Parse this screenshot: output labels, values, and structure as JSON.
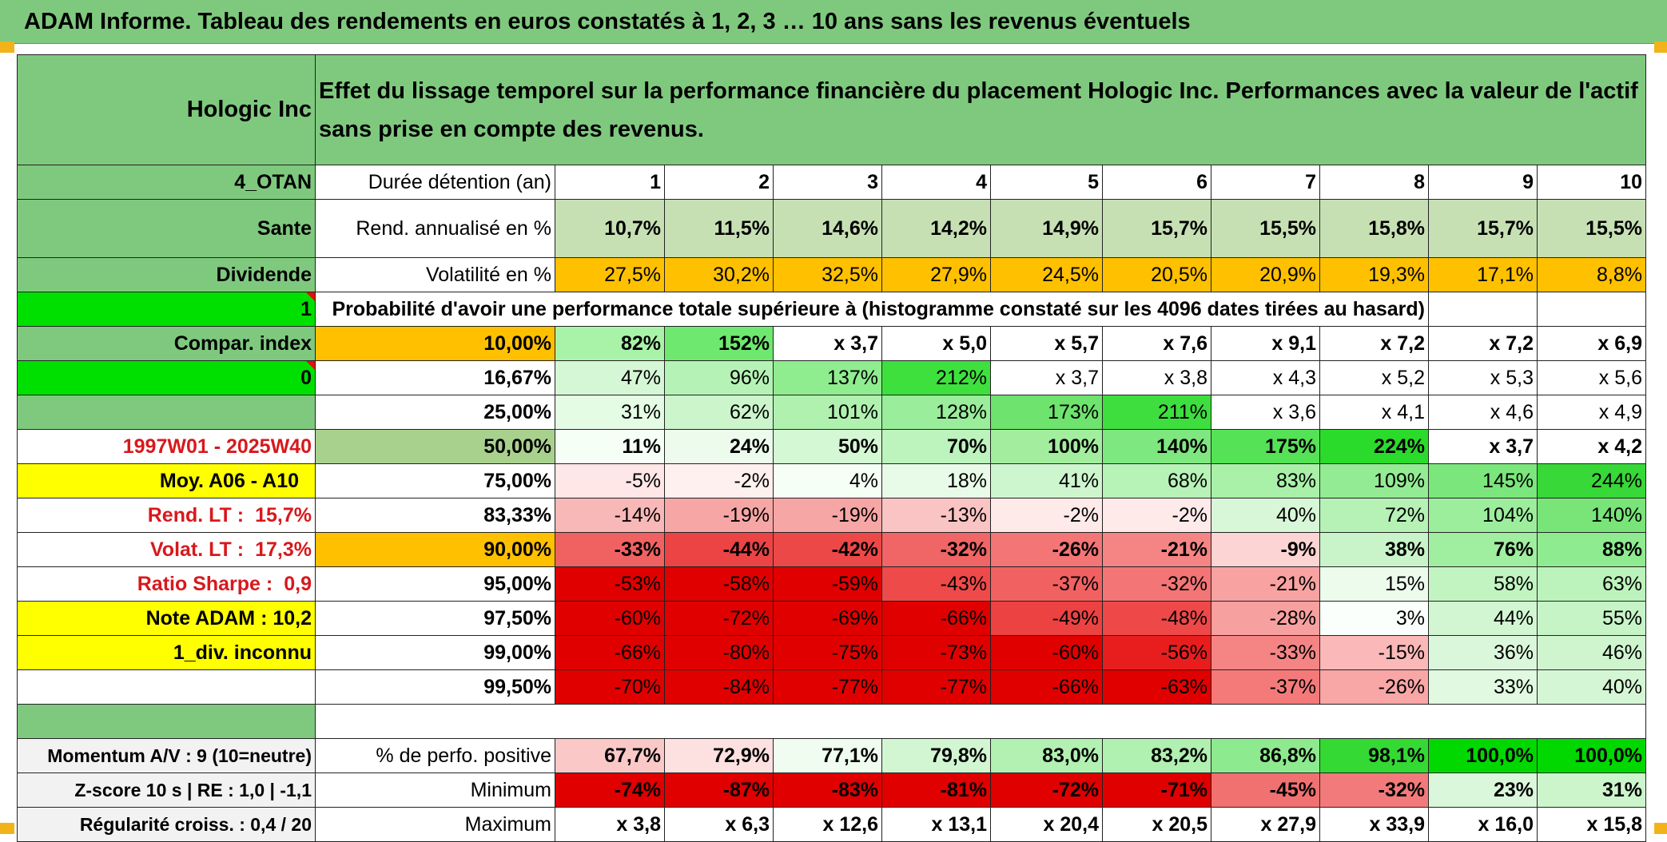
{
  "title": "ADAM Informe. Tableau des rendements en euros constatés à 1, 2, 3 … 10 ans sans les revenus éventuels",
  "asset": "Hologic Inc",
  "description": "Effet du lissage temporel sur la performance financière du placement Hologic Inc. Performances avec la valeur de l'actif sans prise en compte des revenus.",
  "left": {
    "category": "4_OTAN",
    "sector": "Sante",
    "income_type": "Dividende",
    "flag1": "1",
    "compar_index": "Compar. index",
    "flag2": "0",
    "period": "1997W01 - 2025W40",
    "moy": "Moy. A06 - A10",
    "rend_lt_label": "Rend. LT :",
    "rend_lt_value": "15,7%",
    "volat_lt_label": "Volat. LT :",
    "volat_lt_value": "17,3%",
    "sharpe_label": "Ratio Sharpe :",
    "sharpe_value": "0,9",
    "note": "Note ADAM : 10,2",
    "div": "1_div. inconnu",
    "momentum": "Momentum A/V : 9 (10=neutre)",
    "zscore": "Z-score 10 s | RE : 1,0 | -1,1",
    "regularite": "Régularité croiss. : 0,4 / 20"
  },
  "header": {
    "duration_label": "Durée détention (an)",
    "years": [
      "1",
      "2",
      "3",
      "4",
      "5",
      "6",
      "7",
      "8",
      "9",
      "10"
    ]
  },
  "rend": {
    "label": "Rend. annualisé en %",
    "values": [
      "10,7%",
      "11,5%",
      "14,6%",
      "14,2%",
      "14,9%",
      "15,7%",
      "15,5%",
      "15,8%",
      "15,7%",
      "15,5%"
    ]
  },
  "volat": {
    "label": "Volatilité en %",
    "values": [
      "27,5%",
      "30,2%",
      "32,5%",
      "27,9%",
      "24,5%",
      "20,5%",
      "20,9%",
      "19,3%",
      "17,1%",
      "8,8%"
    ]
  },
  "prob_label": "Probabilité d'avoir une performance totale supérieure à (histogramme constaté sur les 4096 dates tirées au hasard)",
  "prob_rows": [
    {
      "p": "10,00%",
      "v": [
        "82%",
        "152%",
        "x 3,7",
        "x 5,0",
        "x 5,7",
        "x 7,6",
        "x 9,1",
        "x 7,2",
        "x 7,2",
        "x 6,9"
      ]
    },
    {
      "p": "16,67%",
      "v": [
        "47%",
        "96%",
        "137%",
        "212%",
        "x 3,7",
        "x 3,8",
        "x 4,3",
        "x 5,2",
        "x 5,3",
        "x 5,6"
      ]
    },
    {
      "p": "25,00%",
      "v": [
        "31%",
        "62%",
        "101%",
        "128%",
        "173%",
        "211%",
        "x 3,6",
        "x 4,1",
        "x 4,6",
        "x 4,9"
      ]
    },
    {
      "p": "50,00%",
      "v": [
        "11%",
        "24%",
        "50%",
        "70%",
        "100%",
        "140%",
        "175%",
        "224%",
        "x 3,7",
        "x 4,2"
      ]
    },
    {
      "p": "75,00%",
      "v": [
        "-5%",
        "-2%",
        "4%",
        "18%",
        "41%",
        "68%",
        "83%",
        "109%",
        "145%",
        "244%"
      ]
    },
    {
      "p": "83,33%",
      "v": [
        "-14%",
        "-19%",
        "-19%",
        "-13%",
        "-2%",
        "-2%",
        "40%",
        "72%",
        "104%",
        "140%"
      ]
    },
    {
      "p": "90,00%",
      "v": [
        "-33%",
        "-44%",
        "-42%",
        "-32%",
        "-26%",
        "-21%",
        "-9%",
        "38%",
        "76%",
        "88%"
      ]
    },
    {
      "p": "95,00%",
      "v": [
        "-53%",
        "-58%",
        "-59%",
        "-43%",
        "-37%",
        "-32%",
        "-21%",
        "15%",
        "58%",
        "63%"
      ]
    },
    {
      "p": "97,50%",
      "v": [
        "-60%",
        "-72%",
        "-69%",
        "-66%",
        "-49%",
        "-48%",
        "-28%",
        "3%",
        "44%",
        "55%"
      ]
    },
    {
      "p": "99,00%",
      "v": [
        "-66%",
        "-80%",
        "-75%",
        "-73%",
        "-60%",
        "-56%",
        "-33%",
        "-15%",
        "36%",
        "46%"
      ]
    },
    {
      "p": "99,50%",
      "v": [
        "-70%",
        "-84%",
        "-77%",
        "-77%",
        "-66%",
        "-63%",
        "-37%",
        "-26%",
        "33%",
        "40%"
      ]
    }
  ],
  "positive": {
    "label": "% de perfo. positive",
    "values": [
      "67,7%",
      "72,9%",
      "77,1%",
      "79,8%",
      "83,0%",
      "83,2%",
      "86,8%",
      "98,1%",
      "100,0%",
      "100,0%"
    ]
  },
  "minimum": {
    "label": "Minimum",
    "values": [
      "-74%",
      "-87%",
      "-83%",
      "-81%",
      "-72%",
      "-71%",
      "-45%",
      "-32%",
      "23%",
      "31%"
    ]
  },
  "maximum": {
    "label": "Maximum",
    "values": [
      "x 3,8",
      "x 6,3",
      "x 12,6",
      "x 13,1",
      "x 20,4",
      "x 20,5",
      "x 27,9",
      "x 33,9",
      "x 16,0",
      "x 15,8"
    ]
  },
  "colors": {
    "header_green": "#7fc97f",
    "rend_green": "#c6e0b4",
    "volat_orange": "#ffc000",
    "flag_green": "#00e000",
    "highlight_yellow": "#ffff00",
    "label_red": "#d8181c"
  },
  "cell_colors": {
    "prob": [
      [
        "#a9f3a9",
        "#6fe86f",
        "#ffffff",
        "#ffffff",
        "#ffffff",
        "#ffffff",
        "#ffffff",
        "#ffffff",
        "#ffffff",
        "#ffffff"
      ],
      [
        "#d6f7d6",
        "#b5f2b5",
        "#8fec8f",
        "#3ee03e",
        "#ffffff",
        "#ffffff",
        "#ffffff",
        "#ffffff",
        "#ffffff",
        "#ffffff"
      ],
      [
        "#e4fbe4",
        "#ccf5cc",
        "#b0f1b0",
        "#9aed9a",
        "#6ee36e",
        "#3ede3e",
        "#ffffff",
        "#ffffff",
        "#ffffff",
        "#ffffff"
      ],
      [
        "#f6fff6",
        "#ecfbec",
        "#d4f7d4",
        "#bdf3bd",
        "#a3ee9e",
        "#7fe77f",
        "#56e256",
        "#2bdb2b",
        "#ffffff",
        "#ffffff"
      ],
      [
        "#ffe7e7",
        "#fff0f0",
        "#f5fff5",
        "#e8fbe8",
        "#cef6ce",
        "#b7f2b7",
        "#a9f0a9",
        "#93ec93",
        "#7be67b",
        "#37d837"
      ],
      [
        "#f9b8b8",
        "#f7a6a6",
        "#f7a6a6",
        "#fac4c4",
        "#ffeaea",
        "#ffeaea",
        "#d8f7d8",
        "#b6f1b6",
        "#9ced9c",
        "#79e579"
      ],
      [
        "#f06262",
        "#ec4444",
        "#ed4848",
        "#f06565",
        "#f37575",
        "#f58585",
        "#fdd4d4",
        "#c9f4c9",
        "#a0ee9f",
        "#8feb8f"
      ],
      [
        "#e00000",
        "#e00000",
        "#e00000",
        "#ee4a4a",
        "#f16161",
        "#f37575",
        "#f8a2a2",
        "#ecfbec",
        "#c2f4c2",
        "#bcf3bc"
      ],
      [
        "#e00000",
        "#e00000",
        "#e00000",
        "#e00000",
        "#ed4242",
        "#ee4848",
        "#f7a0a0",
        "#fbfffb",
        "#d2f6d2",
        "#c6f4c6"
      ],
      [
        "#e00000",
        "#e00000",
        "#e00000",
        "#e00000",
        "#e00000",
        "#e81e1e",
        "#f58585",
        "#fbb8b8",
        "#dbf7db",
        "#cef5ce"
      ],
      [
        "#e00000",
        "#e00000",
        "#e00000",
        "#e00000",
        "#e00000",
        "#e00000",
        "#f47a7a",
        "#f8a6a6",
        "#e0f9e0",
        "#d4f6d4"
      ]
    ],
    "positive": [
      "#fbc8c8",
      "#fde0e0",
      "#effcef",
      "#d2f6d2",
      "#b2f1b2",
      "#b0f0b0",
      "#8eea8e",
      "#34d934",
      "#00d800",
      "#00d800"
    ],
    "minimum": [
      "#e00000",
      "#e00000",
      "#e00000",
      "#e00000",
      "#e00000",
      "#e00000",
      "#f17171",
      "#f37a7a",
      "#dbf7db",
      "#ccf5cc"
    ],
    "prob_pct": [
      "#ffc000",
      "#ffffff",
      "#ffffff",
      "#a9d18e",
      "#ffffff",
      "#ffffff",
      "#ffc000",
      "#ffffff",
      "#ffffff",
      "#ffffff",
      "#ffffff"
    ]
  }
}
